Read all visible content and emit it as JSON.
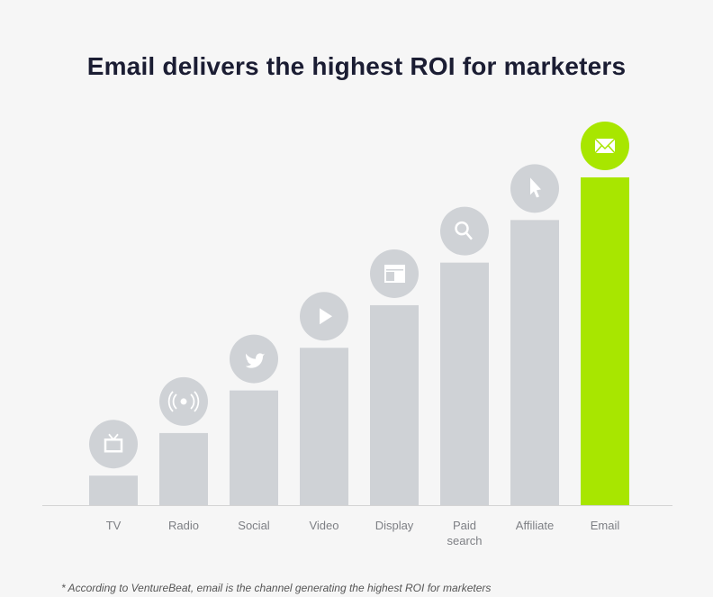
{
  "chart_data": {
    "type": "bar",
    "title": "Email delivers the highest ROI for marketers",
    "categories": [
      "TV",
      "Radio",
      "Social",
      "Video",
      "Display",
      "Paid search",
      "Affiliate",
      "Email"
    ],
    "category_lines": [
      [
        "TV"
      ],
      [
        "Radio"
      ],
      [
        "Social"
      ],
      [
        "Video"
      ],
      [
        "Display"
      ],
      [
        "Paid",
        "search"
      ],
      [
        "Affiliate"
      ],
      [
        "Email"
      ]
    ],
    "values": [
      9,
      22,
      35,
      48,
      61,
      74,
      87,
      100
    ],
    "icons": [
      "tv-icon",
      "radio-broadcast-icon",
      "twitter-bird-icon",
      "play-icon",
      "display-ad-icon",
      "search-icon",
      "cursor-pointer-icon",
      "envelope-icon"
    ],
    "highlight_index": 7,
    "ylim": [
      0,
      100
    ],
    "y_axis_shown": false,
    "grid": false,
    "colors": {
      "bar": "#cfd2d6",
      "highlight": "#a8e600",
      "icon": "#ffffff",
      "background": "#f6f6f6",
      "axis": "#d4d4d4"
    },
    "footnote": "* According to VentureBeat, email is the channel generating the highest ROI for marketers"
  }
}
